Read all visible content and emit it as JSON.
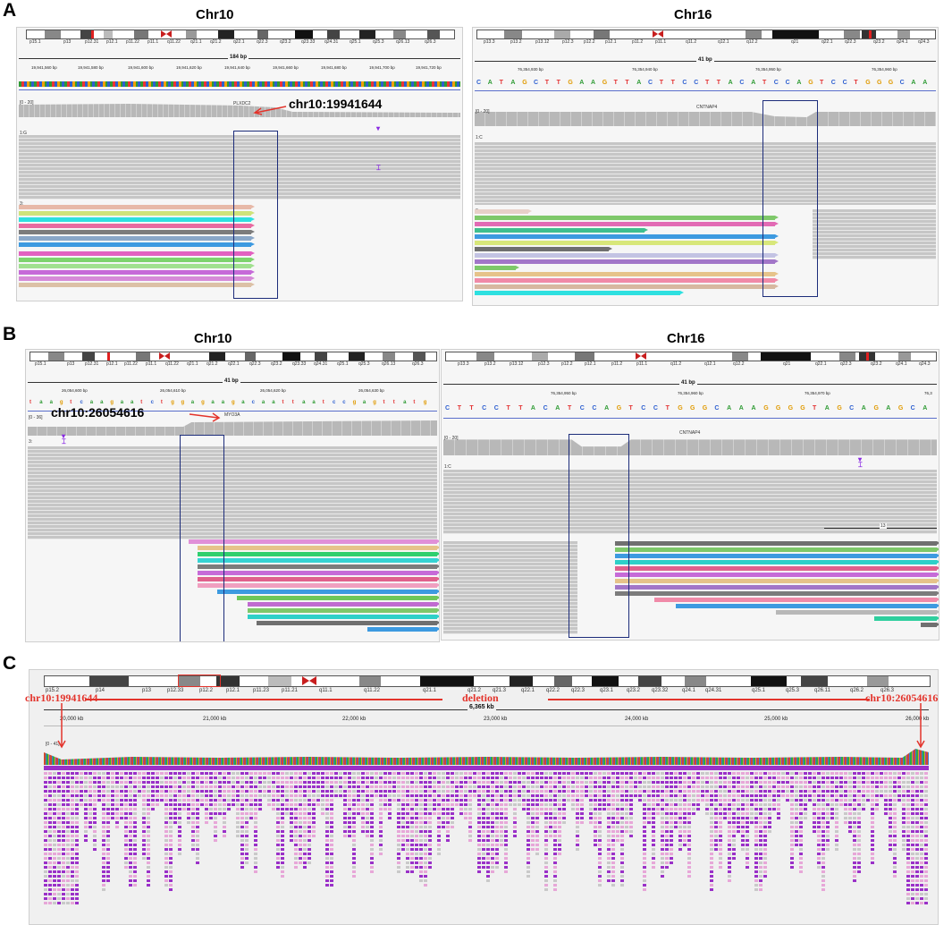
{
  "panels": {
    "A": {
      "letter": "A",
      "left": {
        "title": "Chr10",
        "bands": [
          "p15.1",
          "p13",
          "p12.31",
          "p12.1",
          "p11.22",
          "p11.1",
          "q11.22",
          "q21.1",
          "q21.2",
          "q22.1",
          "q22.3",
          "q23.2",
          "q23.33",
          "q24.31",
          "q25.1",
          "q25.3",
          "q26.13",
          "q26.3"
        ],
        "span_label": "184 bp",
        "positions": [
          "19,941,560 bp",
          "19,941,580 bp",
          "19,941,600 bp",
          "19,941,620 bp",
          "19,941,640 bp",
          "19,941,660 bp",
          "19,941,680 bp",
          "19,941,700 bp",
          "19,941,720 bp"
        ],
        "gene": "PLXDC2",
        "range_label": "[0 - 20]",
        "group_label": "1:G",
        "group2_label": "3:",
        "annotation": "chr10:19941644"
      },
      "right": {
        "title": "Chr16",
        "bands": [
          "p13.3",
          "p13.2",
          "p13.12",
          "p12.3",
          "p12.2",
          "p12.1",
          "p11.2",
          "p11.1",
          "q11.2",
          "q12.1",
          "q12.2",
          "q21",
          "q22.1",
          "q22.3",
          "q23.2",
          "q24.1",
          "q24.3"
        ],
        "span_label": "41 bp",
        "positions": [
          "76,354,930 bp",
          "76,354,940 bp",
          "76,354,950 bp",
          "76,354,960 bp"
        ],
        "sequence": [
          "C",
          "A",
          "T",
          "A",
          "G",
          "C",
          "T",
          "T",
          "G",
          "A",
          "A",
          "G",
          "T",
          "T",
          "A",
          "C",
          "T",
          "T",
          "C",
          "C",
          "T",
          "T",
          "A",
          "C",
          "A",
          "T",
          "C",
          "C",
          "A",
          "G",
          "T",
          "C",
          "C",
          "T",
          "G",
          "G",
          "G",
          "C",
          "A",
          "A"
        ],
        "gene": "CNTNAP4",
        "range_label": "[0 - 20]",
        "group_label": "1:C",
        "group2_label": "3:"
      }
    },
    "B": {
      "letter": "B",
      "left": {
        "title": "Chr10",
        "bands": [
          "p15.1",
          "p13",
          "p12.31",
          "p12.1",
          "p11.22",
          "p11.1",
          "q11.22",
          "q21.1",
          "q21.2",
          "q22.1",
          "q22.3",
          "q23.2",
          "q23.33",
          "q24.31",
          "q25.1",
          "q25.3",
          "q26.13",
          "q26.3"
        ],
        "span_label": "41 bp",
        "positions": [
          "26,054,600 bp",
          "26,054,610 bp",
          "26,054,620 bp",
          "26,054,630 bp"
        ],
        "sequence": [
          "t",
          "a",
          "a",
          "g",
          "t",
          "c",
          "a",
          "a",
          "g",
          "a",
          "a",
          "t",
          "c",
          "t",
          "g",
          "g",
          "a",
          "g",
          "a",
          "a",
          "g",
          "a",
          "c",
          "a",
          "a",
          "t",
          "t",
          "a",
          "a",
          "t",
          "c",
          "c",
          "g",
          "a",
          "g",
          "t",
          "t",
          "a",
          "t",
          "g"
        ],
        "gene": "MYO3A",
        "range_label": "[0 - 36]",
        "group_label": "3:",
        "annotation": "chr10:26054616"
      },
      "right": {
        "title": "Chr16",
        "bands": [
          "p13.3",
          "p13.2",
          "p13.12",
          "p12.3",
          "p12.2",
          "p12.1",
          "p11.2",
          "p11.1",
          "q11.2",
          "q12.1",
          "q12.2",
          "q21",
          "q22.1",
          "q22.3",
          "q23.2",
          "q24.1",
          "q24.3"
        ],
        "span_label": "41 bp",
        "positions": [
          "76,354,950 bp",
          "76,354,960 bp",
          "76,354,970 bp",
          "76,3"
        ],
        "sequence": [
          "C",
          "T",
          "T",
          "C",
          "C",
          "T",
          "T",
          "A",
          "C",
          "A",
          "T",
          "C",
          "C",
          "A",
          "G",
          "T",
          "C",
          "C",
          "T",
          "G",
          "G",
          "G",
          "C",
          "A",
          "A",
          "A",
          "G",
          "G",
          "G",
          "G",
          "T",
          "A",
          "G",
          "C",
          "A",
          "G",
          "A",
          "G",
          "C",
          "A"
        ],
        "gene": "CNTNAP4",
        "range_label": "[0 - 20]",
        "group_label": "1:C",
        "group2_label": "3:",
        "insert_label": "13"
      }
    },
    "C": {
      "letter": "C",
      "bands": [
        "p15.2",
        "p14",
        "p13",
        "p12.33",
        "p12.2",
        "p12.1",
        "p11.23",
        "p11.21",
        "q11.1",
        "q11.22",
        "q21.1",
        "q21.2",
        "q21.3",
        "q22.1",
        "q22.2",
        "q22.3",
        "q23.1",
        "q23.2",
        "q23.32",
        "q24.1",
        "q24.31",
        "q25.1",
        "q25.3",
        "q26.11",
        "q26.2",
        "q26.3"
      ],
      "left_breakpoint": "chr10:19941644",
      "deletion_label": "deletion",
      "right_breakpoint": "chr10:26054616",
      "span_label": "6,365 kb",
      "positions": [
        "20,000 kb",
        "21,000 kb",
        "22,000 kb",
        "23,000 kb",
        "24,000 kb",
        "25,000 kb",
        "26,000 kb"
      ],
      "range_label": "[0 - 41]"
    }
  },
  "colors": {
    "highlight_box": "#1c2c7a",
    "annotation_red": "#e3332b",
    "read_grey": "#c6c6c6",
    "coverage_grey": "#b8b8b8",
    "discordant_purple": "#9a30c8"
  }
}
